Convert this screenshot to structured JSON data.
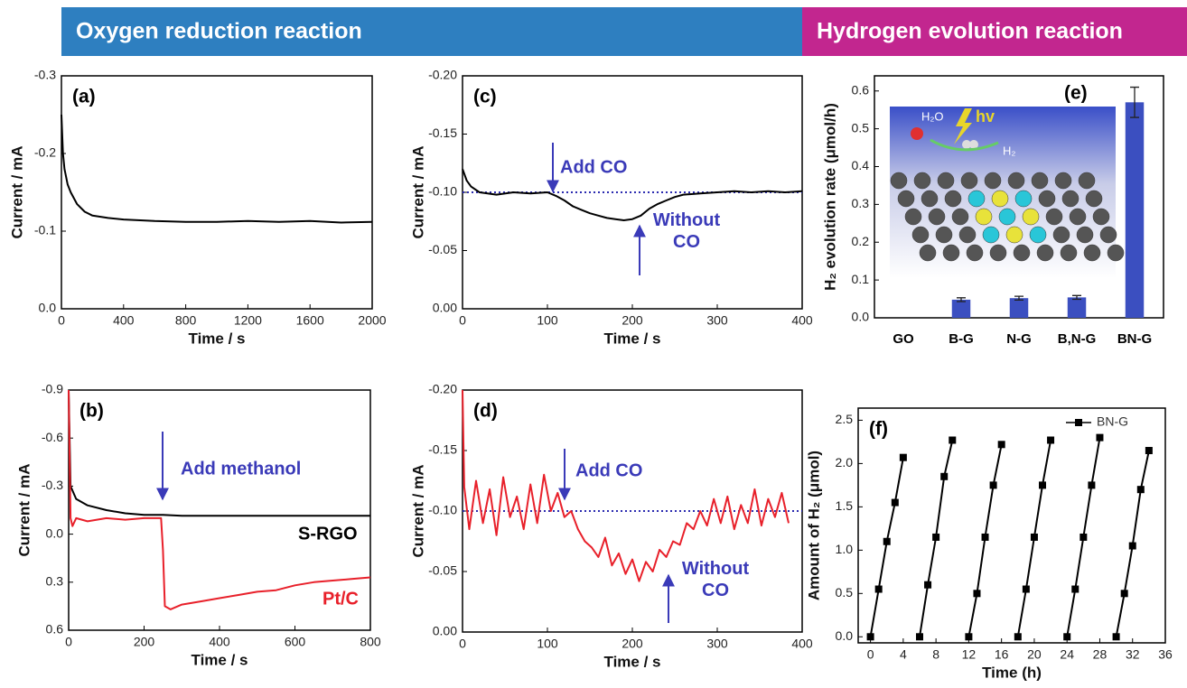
{
  "header": {
    "left": "Oxygen reduction reaction",
    "right": "Hydrogen evolution reaction"
  },
  "chart_data": [
    {
      "type": "line",
      "label": "(a)",
      "xlabel": "Time / s",
      "ylabel": "Current / mA",
      "xlim": [
        0,
        2000
      ],
      "ylim": [
        0,
        -0.3
      ],
      "xticks": [
        0,
        400,
        800,
        1200,
        1600,
        2000
      ],
      "yticks": [
        -0.3,
        -0.2,
        -0.1,
        {
          "value": 0,
          "label": "0.0"
        }
      ],
      "series": [
        {
          "color": "#000000",
          "x": [
            0,
            10,
            20,
            40,
            60,
            100,
            150,
            200,
            300,
            400,
            600,
            800,
            1000,
            1200,
            1400,
            1600,
            1800,
            2000
          ],
          "values": [
            -0.25,
            -0.2,
            -0.18,
            -0.16,
            -0.15,
            -0.135,
            -0.125,
            -0.12,
            -0.117,
            -0.115,
            -0.113,
            -0.112,
            -0.112,
            -0.113,
            -0.112,
            -0.113,
            -0.111,
            -0.112
          ]
        }
      ]
    },
    {
      "type": "line",
      "label": "(b)",
      "xlabel": "Time / s",
      "ylabel": "Current / mA",
      "xlim": [
        0,
        800
      ],
      "ylim": [
        0.6,
        -0.9
      ],
      "xticks": [
        0,
        200,
        400,
        600,
        800
      ],
      "yticks": [
        -0.9,
        -0.6,
        -0.3,
        {
          "value": 0,
          "label": "0.0"
        },
        0.3,
        0.6
      ],
      "annotations": [
        "Add methanol"
      ],
      "series": [
        {
          "name": "S-RGO",
          "color": "#000000",
          "x": [
            0,
            5,
            20,
            50,
            100,
            150,
            200,
            250,
            300,
            400,
            500,
            600,
            700,
            800
          ],
          "values": [
            -0.9,
            -0.3,
            -0.22,
            -0.18,
            -0.15,
            -0.13,
            -0.12,
            -0.12,
            -0.115,
            -0.115,
            -0.115,
            -0.115,
            -0.115,
            -0.115
          ]
        },
        {
          "name": "Pt/C",
          "color": "#e8202a",
          "x": [
            0,
            5,
            10,
            20,
            50,
            100,
            150,
            200,
            245,
            250,
            255,
            270,
            300,
            350,
            400,
            450,
            500,
            550,
            600,
            650,
            700,
            750,
            800
          ],
          "values": [
            -0.9,
            -0.1,
            -0.05,
            -0.1,
            -0.08,
            -0.1,
            -0.09,
            -0.1,
            -0.1,
            0.1,
            0.45,
            0.47,
            0.44,
            0.42,
            0.4,
            0.38,
            0.36,
            0.35,
            0.32,
            0.3,
            0.29,
            0.28,
            0.27
          ]
        }
      ]
    },
    {
      "type": "line",
      "label": "(c)",
      "xlabel": "Time / s",
      "ylabel": "Current / mA",
      "xlim": [
        0,
        400
      ],
      "ylim": [
        0,
        -0.2
      ],
      "xticks": [
        0,
        100,
        200,
        300,
        400
      ],
      "yticks": [
        {
          "value": -0.2,
          "label": "-0.20"
        },
        {
          "value": -0.15,
          "label": "-0.15"
        },
        {
          "value": -0.1,
          "label": "-0.10"
        },
        {
          "value": -0.05,
          "label": "-0.05"
        },
        {
          "value": 0,
          "label": "0.00"
        }
      ],
      "reference_line": -0.1,
      "annotations": [
        "Add CO",
        "Without CO"
      ],
      "series": [
        {
          "color": "#000000",
          "x": [
            0,
            5,
            10,
            20,
            40,
            60,
            80,
            100,
            110,
            120,
            130,
            140,
            150,
            160,
            170,
            180,
            190,
            200,
            210,
            220,
            230,
            240,
            250,
            260,
            280,
            300,
            320,
            340,
            360,
            380,
            400
          ],
          "values": [
            -0.12,
            -0.11,
            -0.105,
            -0.1,
            -0.098,
            -0.1,
            -0.099,
            -0.1,
            -0.097,
            -0.093,
            -0.088,
            -0.085,
            -0.082,
            -0.08,
            -0.078,
            -0.077,
            -0.076,
            -0.077,
            -0.08,
            -0.086,
            -0.09,
            -0.093,
            -0.096,
            -0.098,
            -0.099,
            -0.1,
            -0.101,
            -0.1,
            -0.101,
            -0.1,
            -0.101
          ]
        }
      ]
    },
    {
      "type": "line",
      "label": "(d)",
      "xlabel": "Time / s",
      "ylabel": "Current / mA",
      "xlim": [
        0,
        400
      ],
      "ylim": [
        0,
        -0.2
      ],
      "xticks": [
        0,
        100,
        200,
        300,
        400
      ],
      "yticks": [
        {
          "value": -0.2,
          "label": "-0.20"
        },
        {
          "value": -0.15,
          "label": "-0.15"
        },
        {
          "value": -0.1,
          "label": "-0.10"
        },
        {
          "value": -0.05,
          "label": "-0.05"
        },
        {
          "value": 0,
          "label": "0.00"
        }
      ],
      "reference_line": -0.1,
      "annotations": [
        "Add CO",
        "Without CO"
      ],
      "series": [
        {
          "color": "#e8202a",
          "x": [
            0,
            2,
            8,
            16,
            24,
            32,
            40,
            48,
            56,
            64,
            72,
            80,
            88,
            96,
            104,
            112,
            120,
            128,
            136,
            144,
            152,
            160,
            168,
            176,
            184,
            192,
            200,
            208,
            216,
            224,
            232,
            240,
            248,
            256,
            264,
            272,
            280,
            288,
            296,
            304,
            312,
            320,
            328,
            336,
            344,
            352,
            360,
            368,
            376,
            384
          ],
          "values": [
            -0.2,
            -0.12,
            -0.085,
            -0.125,
            -0.09,
            -0.118,
            -0.08,
            -0.128,
            -0.095,
            -0.112,
            -0.085,
            -0.122,
            -0.09,
            -0.13,
            -0.1,
            -0.115,
            -0.095,
            -0.1,
            -0.085,
            -0.075,
            -0.07,
            -0.062,
            -0.078,
            -0.055,
            -0.065,
            -0.048,
            -0.06,
            -0.042,
            -0.058,
            -0.05,
            -0.068,
            -0.062,
            -0.075,
            -0.072,
            -0.09,
            -0.085,
            -0.1,
            -0.088,
            -0.11,
            -0.09,
            -0.112,
            -0.085,
            -0.105,
            -0.09,
            -0.118,
            -0.088,
            -0.11,
            -0.095,
            -0.115,
            -0.09
          ]
        }
      ]
    },
    {
      "type": "bar",
      "label": "(e)",
      "ylabel": "H₂ evolution rate (μmol/h)",
      "categories": [
        "GO",
        "B-G",
        "N-G",
        "B,N-G",
        "BN-G"
      ],
      "values": [
        0,
        0.048,
        0.052,
        0.054,
        0.57
      ],
      "errors": [
        0,
        0.005,
        0.005,
        0.005,
        0.04
      ],
      "color": "#3b4fc0",
      "ylim": [
        0,
        0.64
      ],
      "yticks": [
        {
          "value": 0,
          "label": "0.0"
        },
        0.1,
        0.2,
        0.3,
        0.4,
        0.5,
        0.6
      ],
      "inset_labels": [
        "H₂O",
        "hv",
        "H₂"
      ]
    },
    {
      "type": "line",
      "label": "(f)",
      "xlabel": "Time (h)",
      "ylabel": "Amount of H₂ (μmol)",
      "xlim": [
        -1.5,
        36
      ],
      "ylim": [
        -0.07,
        2.64
      ],
      "xticks": [
        0,
        4,
        8,
        12,
        16,
        20,
        24,
        28,
        32,
        36
      ],
      "yticks": [
        {
          "value": 0,
          "label": "0.0"
        },
        0.5,
        {
          "value": 1,
          "label": "1.0"
        },
        1.5,
        {
          "value": 2,
          "label": "2.0"
        },
        2.5
      ],
      "markers": true,
      "legend": "upper right",
      "series": [
        {
          "name": "BN-G",
          "color": "#000000",
          "x": [
            0,
            1,
            2,
            3,
            4,
            5,
            6,
            7,
            8,
            9,
            10,
            11,
            12,
            13,
            14,
            15,
            16,
            17,
            18,
            19,
            20,
            21,
            22,
            23,
            24,
            25,
            26,
            27,
            28,
            29,
            30,
            31,
            32,
            33,
            34
          ],
          "values": [
            0,
            0.55,
            1.1,
            1.55,
            2.07,
            null,
            0,
            0.6,
            1.15,
            1.85,
            2.27,
            null,
            0,
            0.5,
            1.15,
            1.75,
            2.22,
            null,
            0,
            0.55,
            1.15,
            1.75,
            2.27,
            null,
            0,
            0.55,
            1.15,
            1.75,
            2.3,
            null,
            0,
            0.5,
            1.05,
            1.7,
            2.15
          ]
        }
      ]
    }
  ]
}
